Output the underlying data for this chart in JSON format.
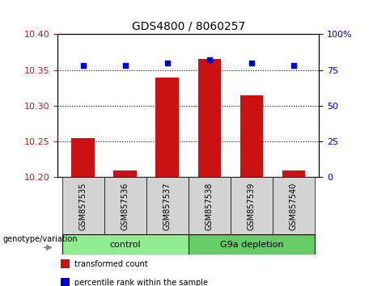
{
  "title": "GDS4800 / 8060257",
  "samples": [
    "GSM857535",
    "GSM857536",
    "GSM857537",
    "GSM857538",
    "GSM857539",
    "GSM857540"
  ],
  "bar_values": [
    10.255,
    10.21,
    10.34,
    10.365,
    10.315,
    10.21
  ],
  "bar_bottom": 10.2,
  "dot_values": [
    78,
    78,
    80,
    82,
    80,
    78
  ],
  "bar_color": "#cc1111",
  "dot_color": "#0000cc",
  "ylim_left": [
    10.2,
    10.4
  ],
  "ylim_right": [
    0,
    100
  ],
  "yticks_left": [
    10.2,
    10.25,
    10.3,
    10.35,
    10.4
  ],
  "yticks_right": [
    0,
    25,
    50,
    75,
    100
  ],
  "ytick_labels_right": [
    "0",
    "25",
    "50",
    "75",
    "100%"
  ],
  "grid_values": [
    10.25,
    10.3,
    10.35
  ],
  "groups": [
    {
      "label": "control",
      "samples": [
        0,
        1,
        2
      ],
      "color": "#90ee90"
    },
    {
      "label": "G9a depletion",
      "samples": [
        3,
        4,
        5
      ],
      "color": "#66cc66"
    }
  ],
  "group_label_prefix": "genotype/variation",
  "legend_items": [
    {
      "color": "#cc1111",
      "label": "transformed count"
    },
    {
      "color": "#0000cc",
      "label": "percentile rank within the sample"
    }
  ],
  "tick_label_color_left": "#cc1111",
  "tick_label_color_right": "#0000cc",
  "xticklabel_bg": "#d3d3d3",
  "bar_width": 0.55
}
